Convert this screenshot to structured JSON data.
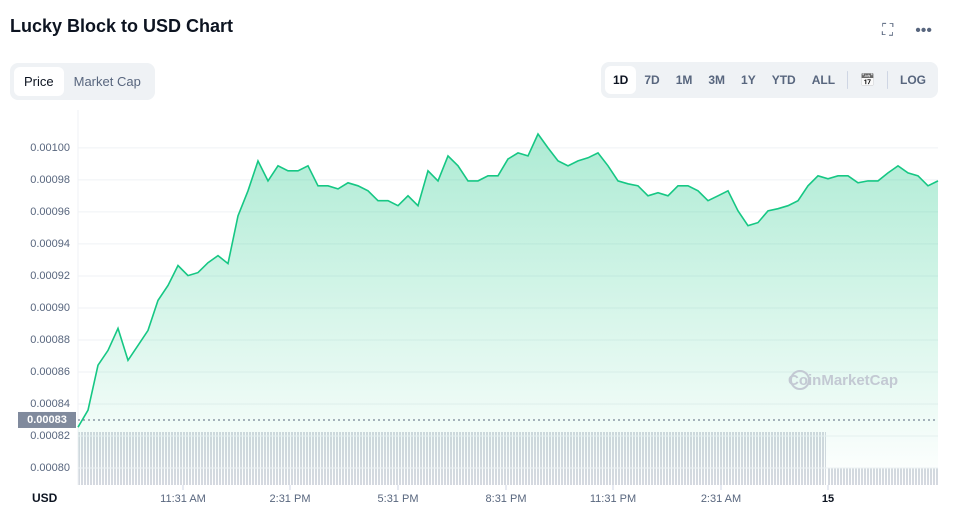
{
  "ui": {
    "title": "Lucky Block to USD Chart",
    "tabs": [
      "Price",
      "Market Cap"
    ],
    "ranges": [
      "1D",
      "7D",
      "1M",
      "3M",
      "1Y",
      "YTD",
      "ALL"
    ],
    "log": "LOG",
    "watermark": "CoinMarketCap"
  },
  "chart_data": {
    "type": "line",
    "color": "#16c784",
    "y_label": "USD",
    "values": [
      0.0008255,
      0.0008361,
      0.0008642,
      0.0008735,
      0.0008872,
      0.0008673,
      0.0008766,
      0.000886,
      0.0009047,
      0.000914,
      0.0009265,
      0.0009202,
      0.0009221,
      0.0009283,
      0.0009327,
      0.0009277,
      0.0009576,
      0.0009732,
      0.0009919,
      0.0009794,
      0.0009888,
      0.0009857,
      0.0009857,
      0.0009888,
      0.0009763,
      0.0009763,
      0.0009744,
      0.0009782,
      0.0009763,
      0.0009732,
      0.000967,
      0.000967,
      0.0009639,
      0.0009701,
      0.0009639,
      0.0009857,
      0.0009794,
      0.000995,
      0.0009888,
      0.0009794,
      0.0009794,
      0.0009826,
      0.0009826,
      0.0009931,
      0.0009969,
      0.000995,
      0.0010087,
      0.001,
      0.0009919,
      0.0009888,
      0.0009919,
      0.0009938,
      0.0009969,
      0.0009888,
      0.0009794,
      0.0009776,
      0.0009763,
      0.0009701,
      0.000972,
      0.0009701,
      0.0009763,
      0.0009763,
      0.0009732,
      0.000967,
      0.0009701,
      0.0009732,
      0.0009607,
      0.0009514,
      0.0009533,
      0.0009607,
      0.000962,
      0.0009639,
      0.000967,
      0.0009763,
      0.0009826,
      0.0009807,
      0.0009826,
      0.0009826,
      0.0009782,
      0.0009794,
      0.0009794,
      0.0009844,
      0.0009888,
      0.0009844,
      0.0009826,
      0.0009763,
      0.0009794
    ],
    "xlim": [
      0,
      86
    ],
    "xticks": [
      {
        "value": 10.5,
        "label": "11:31 AM"
      },
      {
        "value": 21.2,
        "label": "2:31 PM"
      },
      {
        "value": 32,
        "label": "5:31 PM"
      },
      {
        "value": 42.8,
        "label": "8:31 PM"
      },
      {
        "value": 53.5,
        "label": "11:31 PM"
      },
      {
        "value": 64.3,
        "label": "2:31 AM"
      },
      {
        "value": 75,
        "label": "15"
      }
    ],
    "ylim": [
      0.00079,
      0.00102
    ],
    "yticks": [
      {
        "value": 0.0008,
        "label": "0.00080"
      },
      {
        "value": 0.00082,
        "label": "0.00082"
      },
      {
        "value": 0.00084,
        "label": "0.00084"
      },
      {
        "value": 0.00086,
        "label": "0.00086"
      },
      {
        "value": 0.00088,
        "label": "0.00088"
      },
      {
        "value": 0.0009,
        "label": "0.00090"
      },
      {
        "value": 0.00092,
        "label": "0.00092"
      },
      {
        "value": 0.00094,
        "label": "0.00094"
      },
      {
        "value": 0.00096,
        "label": "0.00096"
      },
      {
        "value": 0.00098,
        "label": "0.00098"
      },
      {
        "value": 0.001,
        "label": "0.00100"
      }
    ],
    "current": {
      "value": 0.00083,
      "label": "0.00083"
    },
    "grid": true
  }
}
